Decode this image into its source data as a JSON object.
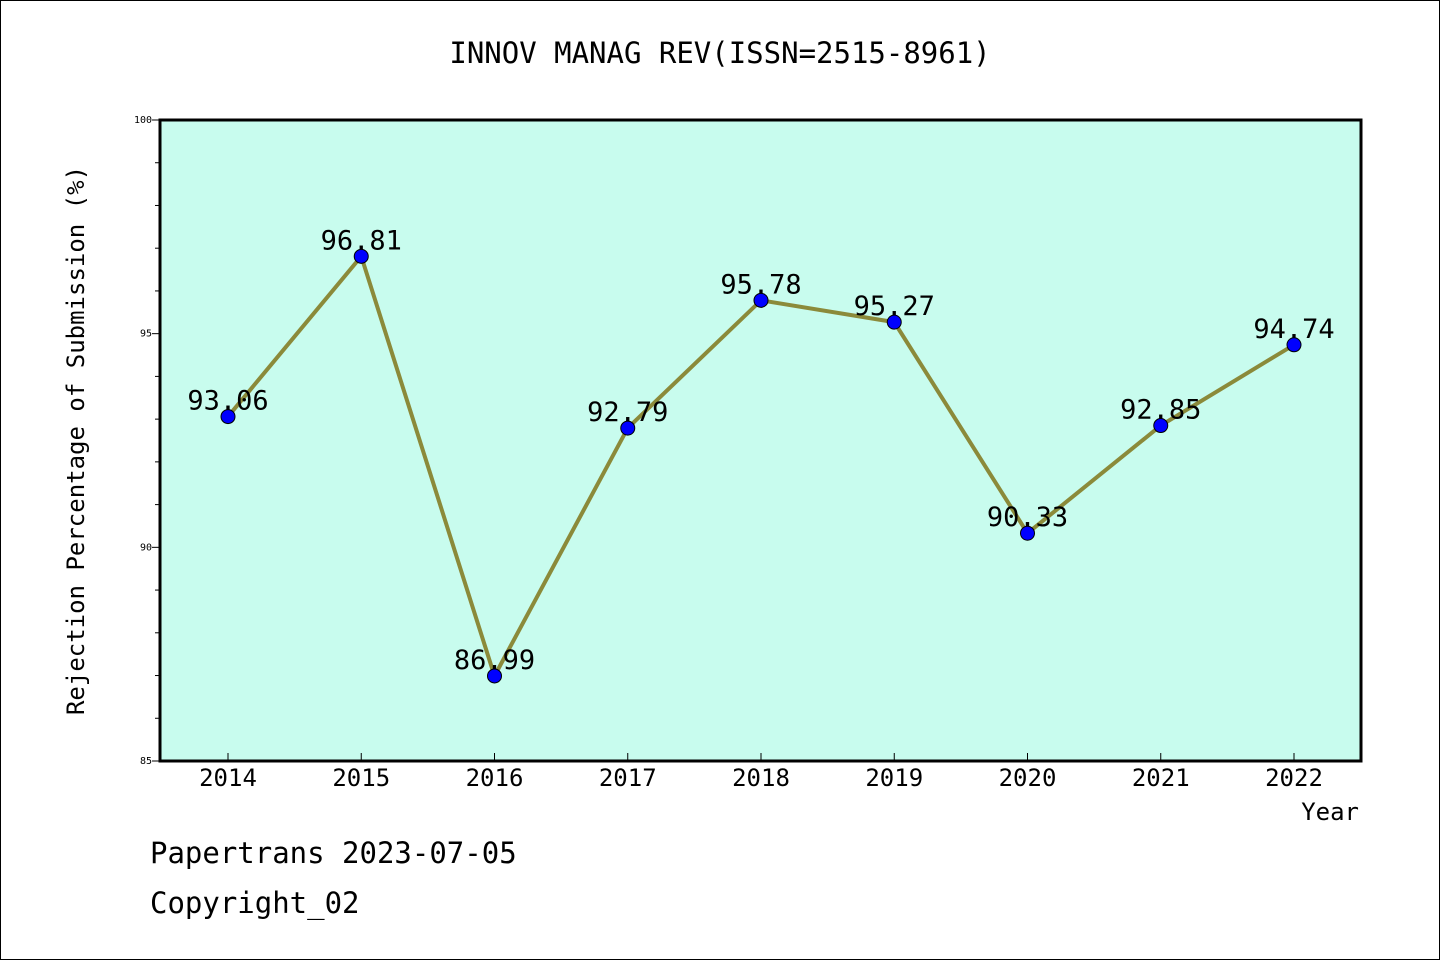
{
  "chart_data": {
    "type": "line",
    "title": "INNOV MANAG REV(ISSN=2515-8961)",
    "xlabel": "Year",
    "ylabel": "Rejection Percentage of Submission (%)",
    "categories": [
      "2014",
      "2015",
      "2016",
      "2017",
      "2018",
      "2019",
      "2020",
      "2021",
      "2022"
    ],
    "series": [
      {
        "values": [
          93.06,
          96.81,
          86.99,
          92.79,
          95.78,
          95.27,
          90.33,
          92.85,
          94.74
        ],
        "labels": [
          "93.06",
          "96.81",
          "86.99",
          "92.79",
          "95.78",
          "95.27",
          "90.33",
          "92.85",
          "94.74"
        ]
      }
    ],
    "ylim": [
      85,
      100
    ],
    "yticks": [
      "85",
      "90",
      "95",
      "100"
    ],
    "grid": false,
    "colors": {
      "plot_background": "#c8fcee",
      "line": "#8b8a3a",
      "marker": "#0000ff"
    }
  },
  "footer": {
    "date_text": "Papertrans 2023-07-05",
    "copyright_text": "Copyright_02"
  }
}
